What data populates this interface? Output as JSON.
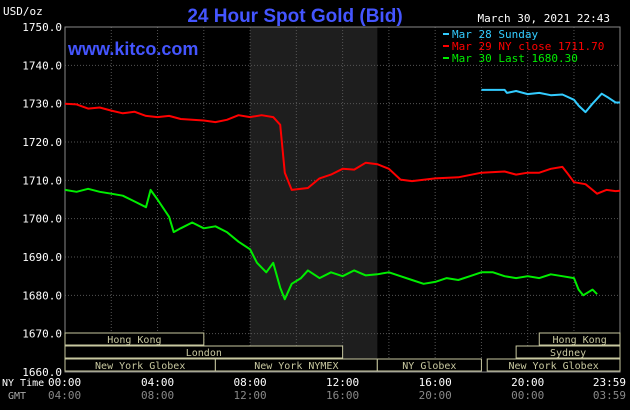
{
  "header": {
    "unit": "USD/oz",
    "title": "24 Hour Spot Gold (Bid)",
    "date": "March 30, 2021 22:43",
    "site": "www.kitco.com"
  },
  "legend": [
    {
      "label": "Mar 28 Sunday",
      "color": "#33ccff"
    },
    {
      "label": "Mar 29 NY close 1711.70",
      "color": "#ff0000"
    },
    {
      "label": "Mar 30 Last 1680.30",
      "color": "#00ee00"
    }
  ],
  "colors": {
    "background": "#000000",
    "grid": "#555555",
    "axis_text": "#ffffff",
    "title": "#4455ff",
    "shade": "#1e1e1e",
    "session_bar": "#000000",
    "session_border": "#c8c8a0",
    "session_text": "#c8c8a0"
  },
  "axes": {
    "x_row_labels": [
      "NY Time",
      "GMT"
    ],
    "ny_ticks": [
      "00:00",
      "04:00",
      "08:00",
      "12:00",
      "16:00",
      "20:00",
      "23:59"
    ],
    "gmt_ticks": [
      "04:00",
      "08:00",
      "12:00",
      "16:00",
      "20:00",
      "00:00",
      "03:59"
    ]
  },
  "sessions": [
    {
      "label": "Hong Kong",
      "start_h": 0,
      "end_h": 6
    },
    {
      "label": "London",
      "start_h": 0,
      "end_h": 12
    },
    {
      "label": "New York Globex",
      "start_h": 0,
      "end_h": 6.5
    },
    {
      "label": "New York NYMEX",
      "start_h": 6.5,
      "end_h": 13.5
    },
    {
      "label": "NY Globex",
      "start_h": 13.5,
      "end_h": 18
    },
    {
      "label": "Hong Kong",
      "start_h": 20.5,
      "end_h": 23.99
    },
    {
      "label": "Sydney",
      "start_h": 19.5,
      "end_h": 23.99
    },
    {
      "label": "New York Globex",
      "start_h": 18.25,
      "end_h": 23.99
    }
  ],
  "chart_data": {
    "type": "line",
    "title": "24 Hour Spot Gold (Bid)",
    "ylabel": "USD/oz",
    "xlabel": "NY Time",
    "xlim": [
      0,
      23.99
    ],
    "ylim": [
      1660,
      1750
    ],
    "yticks": [
      "1660.0",
      "1670.0",
      "1680.0",
      "1690.0",
      "1700.0",
      "1710.0",
      "1720.0",
      "1730.0",
      "1740.0",
      "1750.0"
    ],
    "shaded_range_h": [
      8.0,
      13.5
    ],
    "grid": true,
    "series": [
      {
        "name": "Mar 28 Sunday",
        "color": "#33ccff",
        "points": [
          [
            18.0,
            1733.6
          ],
          [
            19.0,
            1733.6
          ],
          [
            19.1,
            1732.8
          ],
          [
            19.5,
            1733.3
          ],
          [
            20.0,
            1732.5
          ],
          [
            20.5,
            1732.8
          ],
          [
            21.0,
            1732.2
          ],
          [
            21.5,
            1732.4
          ],
          [
            22.0,
            1731.0
          ],
          [
            22.2,
            1729.5
          ],
          [
            22.5,
            1727.8
          ],
          [
            22.8,
            1730.0
          ],
          [
            23.2,
            1732.6
          ],
          [
            23.5,
            1731.5
          ],
          [
            23.8,
            1730.3
          ],
          [
            23.99,
            1730.3
          ]
        ]
      },
      {
        "name": "Mar 29 NY close 1711.70",
        "color": "#ff0000",
        "points": [
          [
            0,
            1730.0
          ],
          [
            0.5,
            1729.8
          ],
          [
            1.0,
            1728.7
          ],
          [
            1.5,
            1729.0
          ],
          [
            2.0,
            1728.2
          ],
          [
            2.5,
            1727.5
          ],
          [
            3.0,
            1727.9
          ],
          [
            3.5,
            1726.8
          ],
          [
            4.0,
            1726.5
          ],
          [
            4.5,
            1726.8
          ],
          [
            5.0,
            1726.0
          ],
          [
            5.5,
            1725.8
          ],
          [
            6.0,
            1725.6
          ],
          [
            6.5,
            1725.2
          ],
          [
            7.0,
            1725.8
          ],
          [
            7.5,
            1727.0
          ],
          [
            8.0,
            1726.5
          ],
          [
            8.5,
            1727.0
          ],
          [
            9.0,
            1726.5
          ],
          [
            9.3,
            1724.5
          ],
          [
            9.5,
            1712.0
          ],
          [
            9.8,
            1707.5
          ],
          [
            10.5,
            1708.0
          ],
          [
            11.0,
            1710.5
          ],
          [
            11.5,
            1711.5
          ],
          [
            12.0,
            1713.0
          ],
          [
            12.5,
            1712.8
          ],
          [
            13.0,
            1714.6
          ],
          [
            13.5,
            1714.2
          ],
          [
            14.0,
            1713.0
          ],
          [
            14.5,
            1710.2
          ],
          [
            15.0,
            1709.8
          ],
          [
            16.0,
            1710.5
          ],
          [
            17.0,
            1710.8
          ],
          [
            18.0,
            1712.0
          ],
          [
            19.0,
            1712.3
          ],
          [
            19.5,
            1711.5
          ],
          [
            20.0,
            1712.0
          ],
          [
            20.5,
            1712.0
          ],
          [
            21.0,
            1713.0
          ],
          [
            21.5,
            1713.5
          ],
          [
            21.7,
            1712.0
          ],
          [
            22.0,
            1709.5
          ],
          [
            22.5,
            1709.0
          ],
          [
            22.8,
            1707.5
          ],
          [
            23.0,
            1706.5
          ],
          [
            23.4,
            1707.5
          ],
          [
            23.8,
            1707.2
          ],
          [
            23.99,
            1707.3
          ]
        ]
      },
      {
        "name": "Mar 30 Last 1680.30",
        "color": "#00ee00",
        "points": [
          [
            0,
            1707.5
          ],
          [
            0.5,
            1707.0
          ],
          [
            1.0,
            1707.8
          ],
          [
            1.5,
            1707.0
          ],
          [
            2.0,
            1706.5
          ],
          [
            2.5,
            1706.0
          ],
          [
            3.0,
            1704.5
          ],
          [
            3.5,
            1703.0
          ],
          [
            3.7,
            1707.5
          ],
          [
            4.0,
            1705.0
          ],
          [
            4.5,
            1700.5
          ],
          [
            4.7,
            1696.5
          ],
          [
            5.0,
            1697.5
          ],
          [
            5.5,
            1699.0
          ],
          [
            6.0,
            1697.5
          ],
          [
            6.5,
            1698.0
          ],
          [
            7.0,
            1696.5
          ],
          [
            7.5,
            1694.0
          ],
          [
            8.0,
            1692.0
          ],
          [
            8.3,
            1688.5
          ],
          [
            8.7,
            1686.0
          ],
          [
            9.0,
            1688.5
          ],
          [
            9.3,
            1682.0
          ],
          [
            9.5,
            1679.0
          ],
          [
            9.8,
            1683.0
          ],
          [
            10.2,
            1684.5
          ],
          [
            10.5,
            1686.5
          ],
          [
            11.0,
            1684.5
          ],
          [
            11.5,
            1686.0
          ],
          [
            12.0,
            1685.0
          ],
          [
            12.5,
            1686.5
          ],
          [
            13.0,
            1685.2
          ],
          [
            13.5,
            1685.5
          ],
          [
            14.0,
            1686.0
          ],
          [
            14.5,
            1685.0
          ],
          [
            15.0,
            1684.0
          ],
          [
            15.5,
            1683.0
          ],
          [
            16.0,
            1683.5
          ],
          [
            16.5,
            1684.5
          ],
          [
            17.0,
            1684.0
          ],
          [
            17.5,
            1685.0
          ],
          [
            18.0,
            1686.0
          ],
          [
            18.5,
            1686.0
          ],
          [
            19.0,
            1685.0
          ],
          [
            19.5,
            1684.5
          ],
          [
            20.0,
            1685.0
          ],
          [
            20.5,
            1684.5
          ],
          [
            21.0,
            1685.5
          ],
          [
            21.5,
            1685.0
          ],
          [
            22.0,
            1684.5
          ],
          [
            22.2,
            1681.5
          ],
          [
            22.4,
            1680.0
          ],
          [
            22.8,
            1681.5
          ],
          [
            23.0,
            1680.3
          ]
        ]
      }
    ]
  }
}
